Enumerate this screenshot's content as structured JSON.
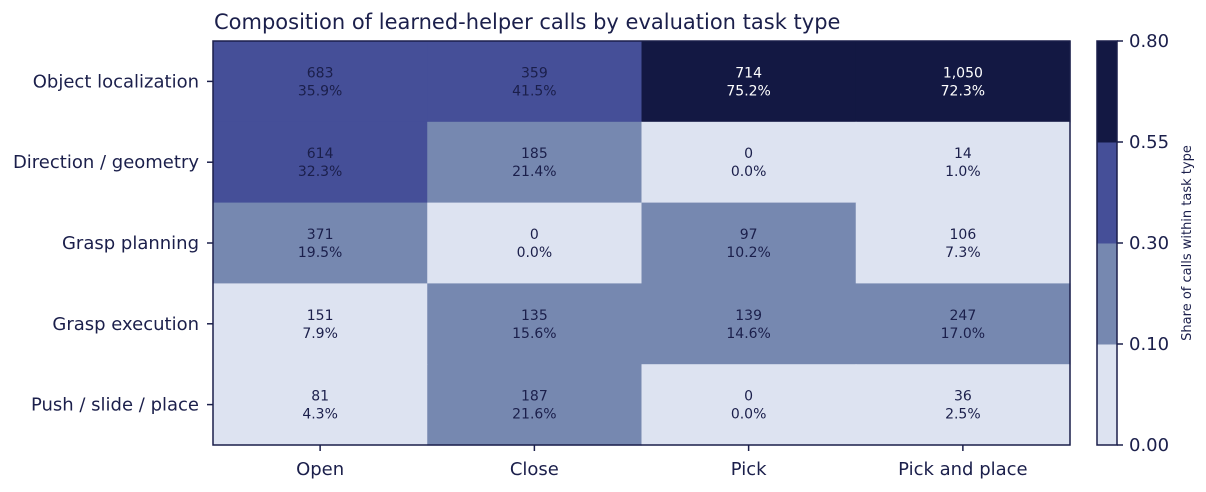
{
  "chart_data": {
    "type": "heatmap",
    "title": "Composition of learned-helper calls by evaluation task type",
    "rows": [
      "Object localization",
      "Direction / geometry",
      "Grasp planning",
      "Grasp execution",
      "Push / slide / place"
    ],
    "columns": [
      "Open",
      "Close",
      "Pick",
      "Pick and place"
    ],
    "counts": [
      [
        "683",
        "359",
        "714",
        "1,050"
      ],
      [
        "614",
        "185",
        "0",
        "14"
      ],
      [
        "371",
        "0",
        "97",
        "106"
      ],
      [
        "151",
        "135",
        "139",
        "247"
      ],
      [
        "81",
        "187",
        "0",
        "36"
      ]
    ],
    "percents": [
      [
        "35.9%",
        "41.5%",
        "75.2%",
        "72.3%"
      ],
      [
        "32.3%",
        "21.4%",
        "0.0%",
        "1.0%"
      ],
      [
        "19.5%",
        "0.0%",
        "10.2%",
        "7.3%"
      ],
      [
        "7.9%",
        "15.6%",
        "14.6%",
        "17.0%"
      ],
      [
        "4.3%",
        "21.6%",
        "0.0%",
        "2.5%"
      ]
    ],
    "shares": [
      [
        0.359,
        0.415,
        0.752,
        0.723
      ],
      [
        0.323,
        0.214,
        0.0,
        0.01
      ],
      [
        0.195,
        0.0,
        0.102,
        0.073
      ],
      [
        0.079,
        0.156,
        0.146,
        0.17
      ],
      [
        0.043,
        0.216,
        0.0,
        0.025
      ]
    ],
    "colorbar": {
      "label": "Share of calls within task type",
      "bounds": [
        0.0,
        0.1,
        0.3,
        0.55,
        0.8
      ],
      "tick_labels": [
        "0.00",
        "0.10",
        "0.30",
        "0.55",
        "0.80"
      ],
      "colors": [
        "#dde3f1",
        "#7688b0",
        "#454f98",
        "#131843"
      ]
    },
    "text_colors": {
      "on_light": "#1b1f4b",
      "on_dark": "#ffffff"
    },
    "axis_color": "#1b1f4b"
  }
}
